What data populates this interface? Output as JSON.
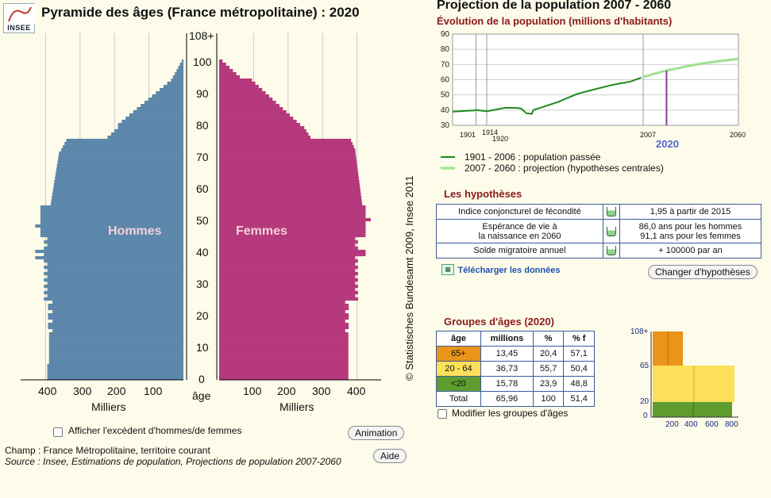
{
  "header": {
    "logo_text": "INSEE",
    "title": "Pyramide des âges (France métropolitaine) : 2020"
  },
  "pyramid": {
    "age_top_label": "108+",
    "age_ticks": [
      "100",
      "90",
      "80",
      "70",
      "60",
      "50",
      "40",
      "30",
      "20",
      "10",
      "0"
    ],
    "age_axis_label": "âge",
    "left_label": "Hommes",
    "right_label": "Femmes",
    "x_ticks_left": [
      "400",
      "300",
      "200",
      "100"
    ],
    "x_ticks_right": [
      "100",
      "200",
      "300",
      "400"
    ],
    "x_axis_label": "Milliers",
    "colors": {
      "hommes": "#5d87ab",
      "femmes": "#b5397c"
    }
  },
  "controls": {
    "excess_checkbox_label": "Afficher l'excédent d'hommes/de femmes",
    "animation_button": "Animation",
    "aide_button": "Aide"
  },
  "footer": {
    "champ": "Champ : France Métropolitaine, territoire courant",
    "source": "Source : Insee, Estimations de population, Projections de population 2007-2060"
  },
  "credit": "© Statistisches Bundesamt 2009, Insee 2011",
  "projection": {
    "title": "Projection de la population 2007 - 2060",
    "subtitle": "Évolution de la population (millions d'habitants)",
    "y_ticks": [
      "90",
      "80",
      "70",
      "60",
      "50",
      "40",
      "30"
    ],
    "x_ticks": [
      "1901",
      "1914",
      "1920",
      "2007",
      "2060"
    ],
    "highlight_year": "2020",
    "legend": [
      {
        "label": "1901 - 2006 : population passée",
        "color": "#1e8a1e"
      },
      {
        "label": "2007 - 2060 : projection (hypothèses centrales)",
        "color": "#9fe08f"
      }
    ]
  },
  "hypotheses": {
    "title": "Les hypothèses",
    "rows": [
      {
        "label": "Indice conjoncturel de fécondité",
        "value": "1,95 à partir de 2015"
      },
      {
        "label_l1": "Espérance de vie à",
        "label_l2": "la naissance en 2060",
        "value_l1": "86,0 ans pour les hommes",
        "value_l2": "91,1 ans pour les femmes"
      },
      {
        "label": "Solde migratoire annuel",
        "value": "+ 100000 par an"
      }
    ],
    "download_link": "Télécharger les données",
    "change_button": "Changer d'hypothèses"
  },
  "groups": {
    "title": "Groupes d'âges (2020)",
    "headers": [
      "âge",
      "millions",
      "%",
      "% f"
    ],
    "rows": [
      {
        "age": "65+",
        "millions": "13,45",
        "pct": "20,4",
        "pctf": "57,1",
        "color": "#e8951a"
      },
      {
        "age": "20 - 64",
        "millions": "36,73",
        "pct": "55,7",
        "pctf": "50,4",
        "color": "#fde05a"
      },
      {
        "age": "<20",
        "millions": "15,78",
        "pct": "23,9",
        "pctf": "48,8",
        "color": "#5e9c30"
      },
      {
        "age": "Total",
        "millions": "65,96",
        "pct": "100",
        "pctf": "51,4",
        "color": "#ffffff"
      }
    ],
    "modify_checkbox_label": "Modifier les groupes d'âges",
    "mini_y_ticks": [
      "108+",
      "65",
      "20",
      "0"
    ],
    "mini_x_ticks": [
      "200",
      "400",
      "600",
      "800"
    ]
  }
}
